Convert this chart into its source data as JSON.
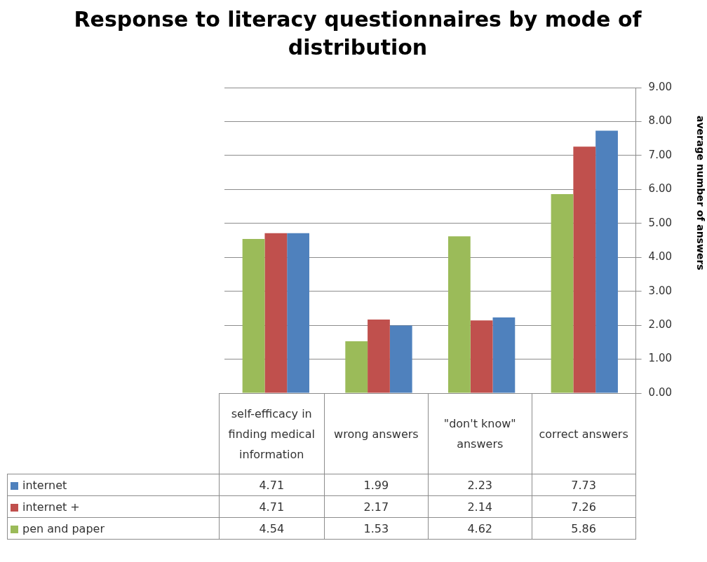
{
  "chart_data": {
    "type": "bar",
    "title": "Response to literacy questionnaires by mode of distribution",
    "ylabel": "average number of answers",
    "categories": [
      "self-efficacy in finding medical information",
      "wrong answers",
      "\"don't know\" answers",
      "correct answers"
    ],
    "series": [
      {
        "name": "pen and paper",
        "color": "#9bbb59",
        "values": [
          4.54,
          1.53,
          4.62,
          5.86
        ]
      },
      {
        "name": "internet +",
        "color": "#c0504d",
        "values": [
          4.71,
          2.17,
          2.14,
          7.26
        ]
      },
      {
        "name": "internet",
        "color": "#4f81bd",
        "values": [
          4.71,
          1.99,
          2.23,
          7.73
        ]
      }
    ],
    "ylim": [
      0,
      9
    ],
    "yticks": [
      {
        "value": 0,
        "label": "0.00"
      },
      {
        "value": 1,
        "label": "1.00"
      },
      {
        "value": 2,
        "label": "2.00"
      },
      {
        "value": 3,
        "label": "3.00"
      },
      {
        "value": 4,
        "label": "4.00"
      },
      {
        "value": 5,
        "label": "5.00"
      },
      {
        "value": 6,
        "label": "6.00"
      },
      {
        "value": 7,
        "label": "7.00"
      },
      {
        "value": 8,
        "label": "8.00"
      },
      {
        "value": 9,
        "label": "9.00"
      }
    ],
    "grid": "y",
    "data_labels": true,
    "legend": "bottom left"
  }
}
